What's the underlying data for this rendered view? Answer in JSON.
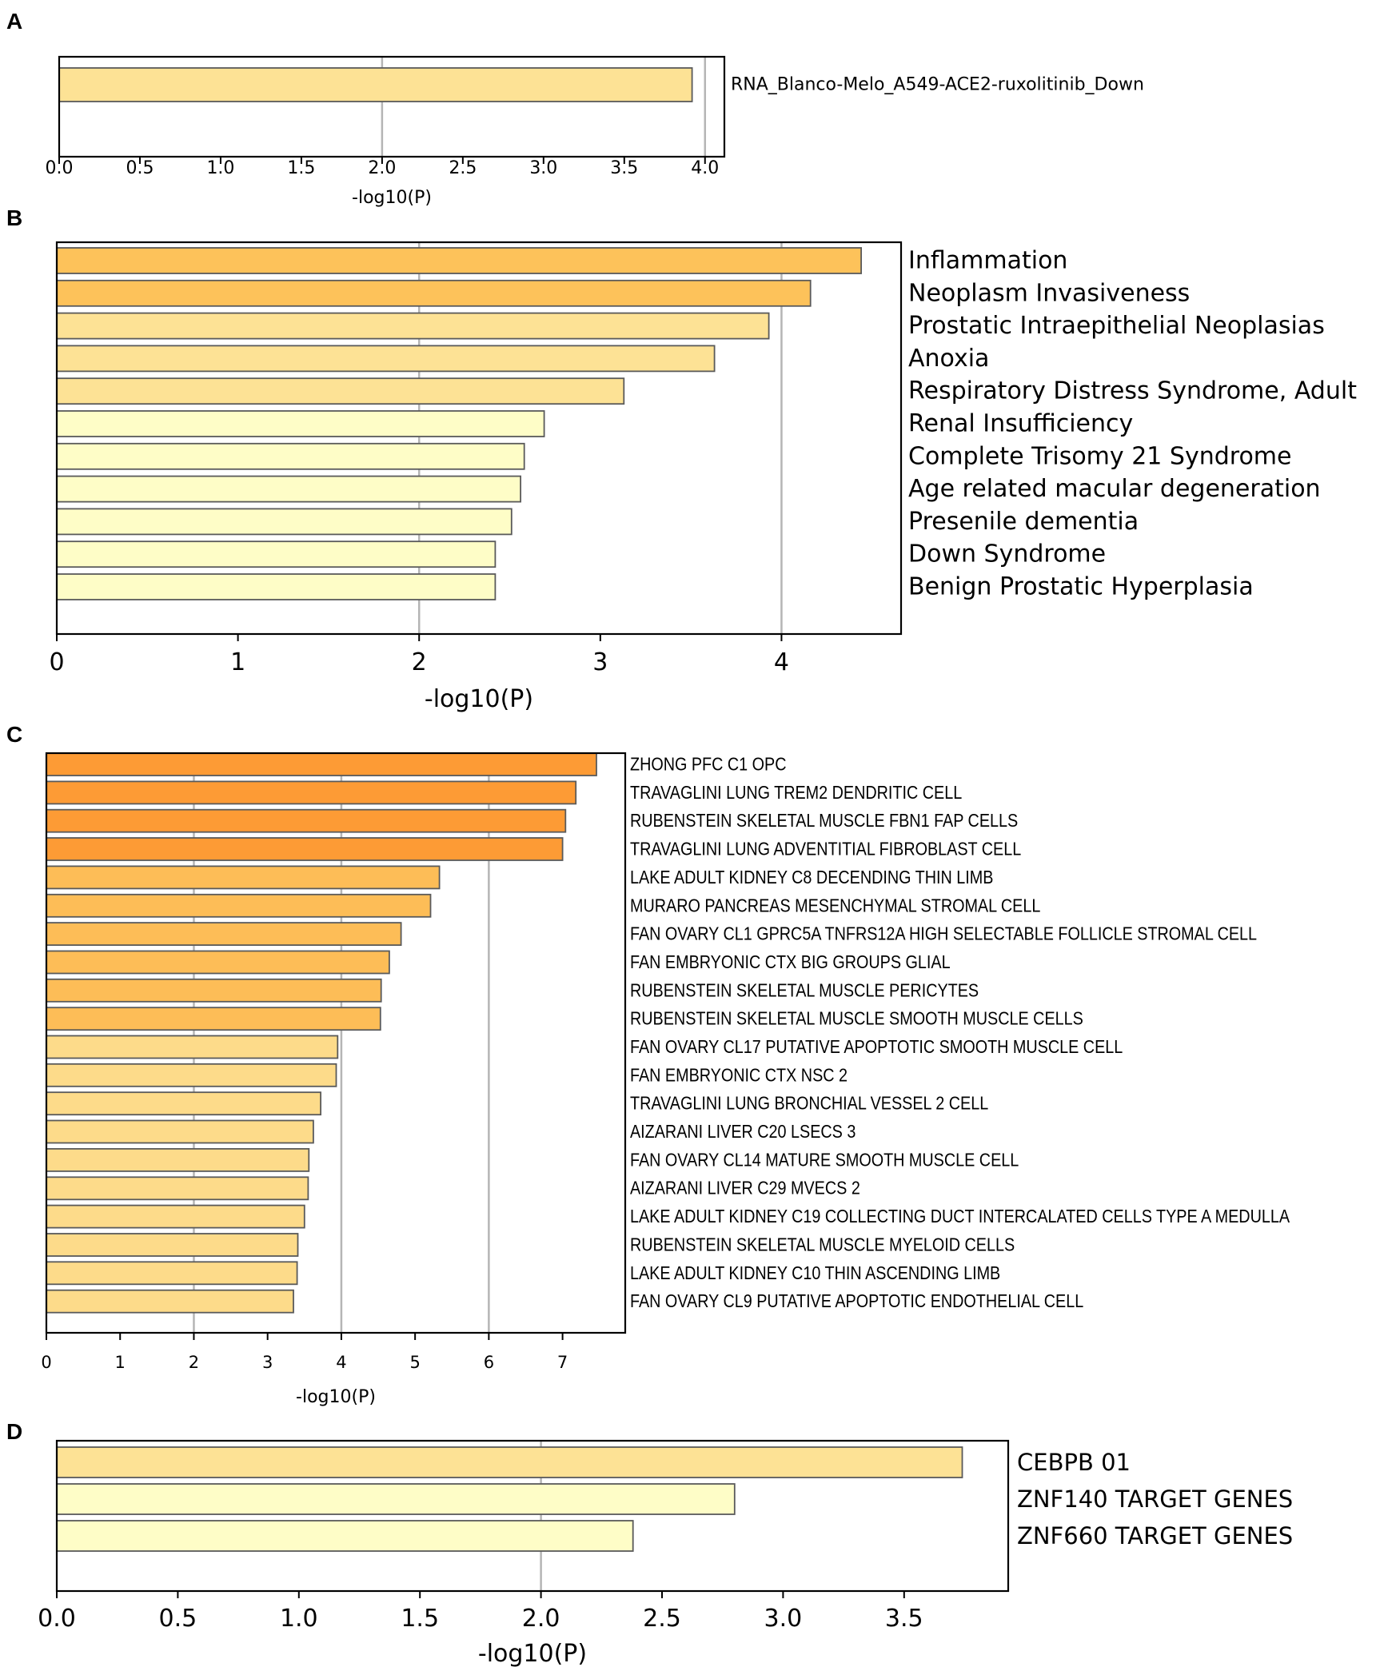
{
  "chart_data": [
    {
      "panel": "A",
      "type": "bar",
      "orientation": "horizontal",
      "xlabel": "-log10(P)",
      "xlim": [
        0,
        4.12
      ],
      "ticks": [
        "0.0",
        "0.5",
        "1.0",
        "1.5",
        "2.0",
        "2.5",
        "3.0",
        "3.5",
        "4.0"
      ],
      "tick_values": [
        0,
        0.5,
        1.0,
        1.5,
        2.0,
        2.5,
        3.0,
        3.5,
        4.0
      ],
      "gridlines": [
        2.0,
        4.0
      ],
      "categories": [
        "RNA_Blanco-Melo_A549-ACE2-ruxolitinib_Down"
      ],
      "values": [
        3.92
      ],
      "colors": [
        "#fde295"
      ]
    },
    {
      "panel": "B",
      "type": "bar",
      "orientation": "horizontal",
      "xlabel": "-log10(P)",
      "xlim": [
        0,
        4.66
      ],
      "ticks": [
        "0",
        "1",
        "2",
        "3",
        "4"
      ],
      "tick_values": [
        0,
        1,
        2,
        3,
        4
      ],
      "gridlines": [
        2,
        4
      ],
      "categories": [
        "Inflammation",
        "Neoplasm Invasiveness",
        "Prostatic Intraepithelial Neoplasias",
        "Anoxia",
        "Respiratory Distress Syndrome, Adult",
        "Renal Insufficiency",
        "Complete Trisomy 21 Syndrome",
        "Age related macular degeneration",
        "Presenile dementia",
        "Down Syndrome",
        "Benign Prostatic Hyperplasia"
      ],
      "values": [
        4.44,
        4.16,
        3.93,
        3.63,
        3.13,
        2.69,
        2.58,
        2.56,
        2.51,
        2.42,
        2.42
      ],
      "colors": [
        "#fdc25a",
        "#fdc25a",
        "#fde295",
        "#fde295",
        "#fde295",
        "#fefdc7",
        "#fefdc7",
        "#fefdc7",
        "#fefdc7",
        "#fefdc7",
        "#fefdc7"
      ]
    },
    {
      "panel": "C",
      "type": "bar",
      "orientation": "horizontal",
      "xlabel": "-log10(P)",
      "xlim": [
        0,
        7.85
      ],
      "ticks": [
        "0",
        "1",
        "2",
        "3",
        "4",
        "5",
        "6",
        "7"
      ],
      "tick_values": [
        0,
        1,
        2,
        3,
        4,
        5,
        6,
        7
      ],
      "gridlines": [
        2,
        4,
        6
      ],
      "categories": [
        "ZHONG PFC C1 OPC",
        "TRAVAGLINI LUNG TREM2 DENDRITIC CELL",
        "RUBENSTEIN SKELETAL MUSCLE FBN1 FAP CELLS",
        "TRAVAGLINI LUNG ADVENTITIAL FIBROBLAST CELL",
        "LAKE ADULT KIDNEY C8 DECENDING THIN LIMB",
        "MURARO PANCREAS MESENCHYMAL STROMAL CELL",
        "FAN OVARY CL1 GPRC5A TNFRS12A HIGH SELECTABLE FOLLICLE STROMAL CELL",
        "FAN EMBRYONIC CTX BIG GROUPS GLIAL",
        "RUBENSTEIN SKELETAL MUSCLE PERICYTES",
        "RUBENSTEIN SKELETAL MUSCLE SMOOTH MUSCLE CELLS",
        "FAN OVARY CL17 PUTATIVE APOPTOTIC SMOOTH MUSCLE CELL",
        "FAN EMBRYONIC CTX NSC 2",
        "TRAVAGLINI LUNG BRONCHIAL VESSEL 2 CELL",
        "AIZARANI LIVER C20 LSECS 3",
        "FAN OVARY CL14 MATURE SMOOTH MUSCLE CELL",
        "AIZARANI LIVER C29 MVECS 2",
        "LAKE ADULT KIDNEY C19 COLLECTING DUCT INTERCALATED CELLS TYPE A MEDULLA",
        "RUBENSTEIN SKELETAL MUSCLE MYELOID CELLS",
        "LAKE ADULT KIDNEY C10 THIN ASCENDING LIMB",
        "FAN OVARY CL9 PUTATIVE APOPTOTIC ENDOTHELIAL CELL"
      ],
      "values": [
        7.46,
        7.18,
        7.04,
        7.0,
        5.33,
        5.21,
        4.81,
        4.65,
        4.54,
        4.53,
        3.95,
        3.93,
        3.72,
        3.62,
        3.56,
        3.55,
        3.5,
        3.41,
        3.4,
        3.35
      ],
      "colors": [
        "#fd9b35",
        "#fd9b35",
        "#fd9b35",
        "#fd9b35",
        "#fdbd57",
        "#fdbd57",
        "#fdbd57",
        "#fdbd57",
        "#fdbd57",
        "#fdbd57",
        "#fddb8a",
        "#fddb8a",
        "#fddb8a",
        "#fddb8a",
        "#fddb8a",
        "#fddb8a",
        "#fddb8a",
        "#fddb8a",
        "#fddb8a",
        "#fddb8a"
      ]
    },
    {
      "panel": "D",
      "type": "bar",
      "orientation": "horizontal",
      "xlabel": "-log10(P)",
      "xlim": [
        0,
        3.93
      ],
      "ticks": [
        "0.0",
        "0.5",
        "1.0",
        "1.5",
        "2.0",
        "2.5",
        "3.0",
        "3.5"
      ],
      "tick_values": [
        0,
        0.5,
        1.0,
        1.5,
        2.0,
        2.5,
        3.0,
        3.5
      ],
      "gridlines": [
        2.0
      ],
      "categories": [
        "CEBPB 01",
        "ZNF140 TARGET GENES",
        "ZNF660 TARGET GENES"
      ],
      "values": [
        3.74,
        2.8,
        2.38
      ],
      "colors": [
        "#fde295",
        "#fefdc7",
        "#fefdc7"
      ]
    }
  ]
}
